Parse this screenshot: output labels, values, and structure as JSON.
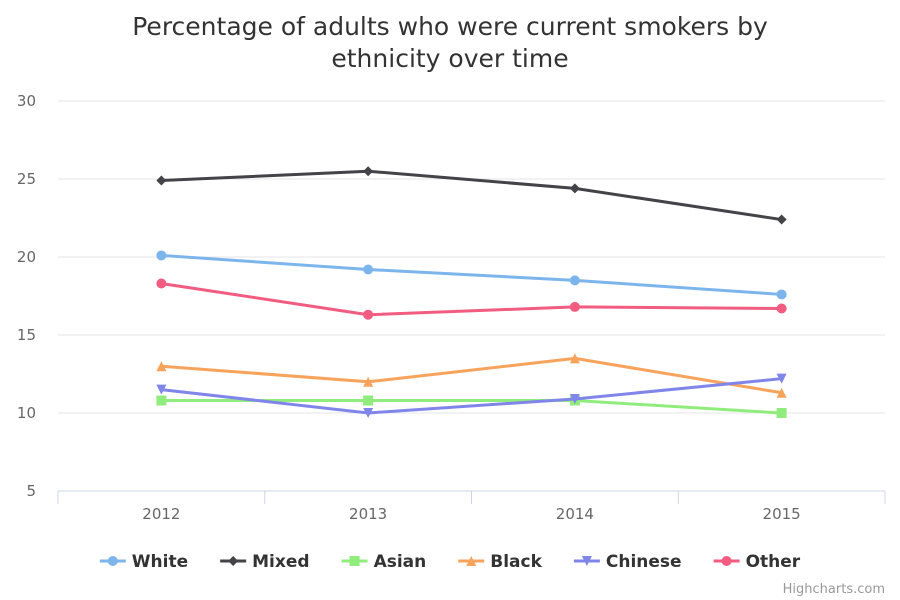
{
  "chart_data": {
    "type": "line",
    "title_lines": [
      "Percentage of adults who were current smokers by",
      "ethnicity over time"
    ],
    "categories": [
      "2012",
      "2013",
      "2014",
      "2015"
    ],
    "ylim": [
      5,
      30
    ],
    "yticks": [
      "5",
      "10",
      "15",
      "20",
      "25",
      "30"
    ],
    "grid": true,
    "legend_position": "bottom",
    "series": [
      {
        "name": "White",
        "color": "#7cb5ec",
        "marker": "circle",
        "values": [
          20.1,
          19.2,
          18.5,
          17.6
        ]
      },
      {
        "name": "Mixed",
        "color": "#434348",
        "marker": "diamond",
        "values": [
          24.9,
          25.5,
          24.4,
          22.4
        ]
      },
      {
        "name": "Asian",
        "color": "#90ed7d",
        "marker": "square",
        "values": [
          10.8,
          10.8,
          10.8,
          10.0
        ]
      },
      {
        "name": "Black",
        "color": "#f7a35c",
        "marker": "triangle",
        "values": [
          13.0,
          12.0,
          13.5,
          11.3
        ]
      },
      {
        "name": "Chinese",
        "color": "#8085e9",
        "marker": "triangle-down",
        "values": [
          11.5,
          10.0,
          10.9,
          12.2
        ]
      },
      {
        "name": "Other",
        "color": "#f15c80",
        "marker": "circle",
        "values": [
          18.3,
          16.3,
          16.8,
          16.7
        ]
      }
    ]
  },
  "credits": "Highcharts.com"
}
